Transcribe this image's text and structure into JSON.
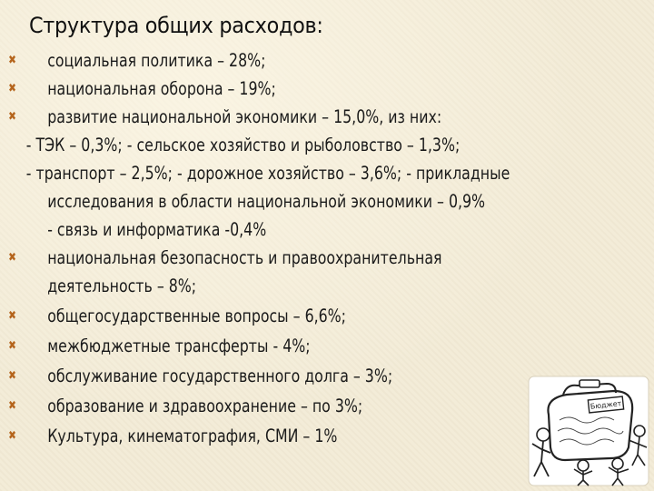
{
  "title": "Структура общих расходов:",
  "lines": [
    {
      "kind": "bullet",
      "text": "социальная политика – 28%;"
    },
    {
      "kind": "bullet",
      "text": "национальная оборона – 19%;"
    },
    {
      "kind": "bullet",
      "text": "развитие национальной экономики – 15,0%, из них:"
    },
    {
      "kind": "dash",
      "text": "- ТЭК – 0,3%; - сельское хозяйство и рыболовство – 1,3%;"
    },
    {
      "kind": "dash",
      "text": "- транспорт – 2,5%; - дорожное хозяйство – 3,6%; - прикладные"
    },
    {
      "kind": "cont",
      "text": "исследования в области национальной экономики – 0,9%"
    },
    {
      "kind": "cont",
      "text": "- связь и информатика -0,4%"
    },
    {
      "kind": "bullet",
      "text": "национальная безопасность и правоохранительная"
    },
    {
      "kind": "cont",
      "text": "деятельность – 8%;"
    },
    {
      "kind": "bullet",
      "text": "общегосударственные вопросы – 6,6%;"
    },
    {
      "kind": "bullet",
      "text": "межбюджетные трансферты - 4%;"
    },
    {
      "kind": "bullet",
      "text": "обслуживание государственного долга – 3%;"
    },
    {
      "kind": "bullet",
      "text": "образование  и здравоохранение – по 3%;"
    },
    {
      "kind": "bullet",
      "text": "Культура, кинематография, СМИ – 1%"
    }
  ],
  "bullet_glyph": "✖",
  "illustration": {
    "label": "Бюджет",
    "icon": "budget-bag-cartoon-icon"
  },
  "colors": {
    "background": "#f3ecd8",
    "bullet": "#b5651d",
    "text": "#1a1a1a"
  }
}
